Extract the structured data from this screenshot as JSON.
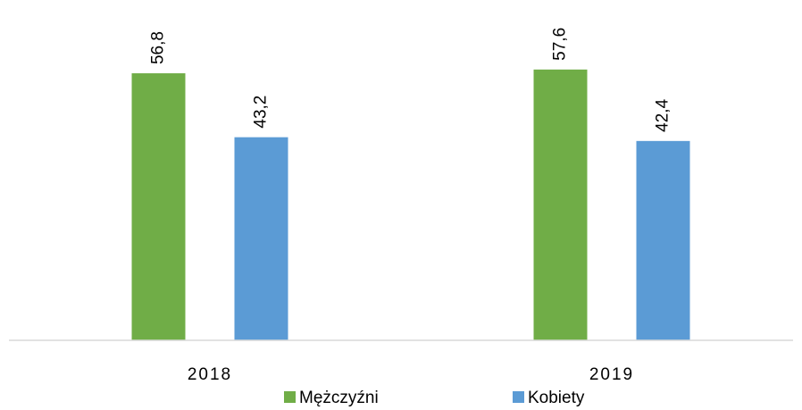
{
  "chart_data": {
    "type": "bar",
    "categories": [
      "2018",
      "2019"
    ],
    "series": [
      {
        "name": "Mężczyźni",
        "color": "#70ad47",
        "values": [
          56.8,
          57.6
        ],
        "value_labels": [
          "56,8",
          "57,6"
        ]
      },
      {
        "name": "Kobiety",
        "color": "#5b9bd5",
        "values": [
          43.2,
          42.4
        ],
        "value_labels": [
          "43,2",
          "42,4"
        ]
      }
    ],
    "ylim": [
      0,
      60
    ],
    "legend": "bottom"
  }
}
